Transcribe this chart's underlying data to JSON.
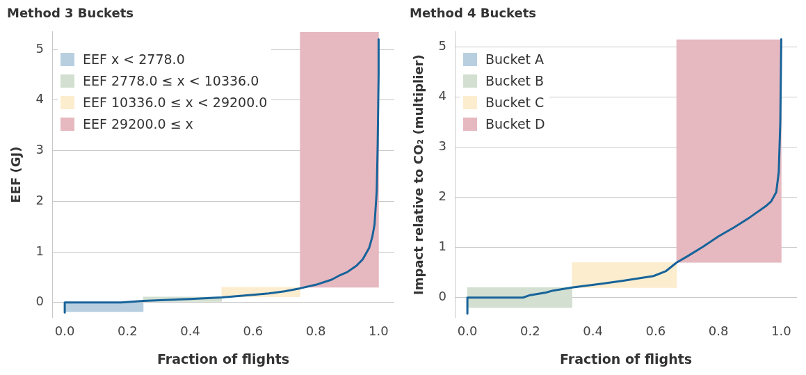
{
  "chart_data": [
    {
      "type": "line",
      "title": "Method 3 Buckets",
      "xlabel": "Fraction of flights",
      "ylabel": "EEF (GJ)",
      "legend": "top left",
      "grid": "y",
      "marker": "none",
      "line_style": "solid",
      "xlim": [
        -0.04,
        1.05
      ],
      "xticks": [
        {
          "value": 0,
          "label": "0.0"
        },
        {
          "value": 0.2,
          "label": "0.2"
        },
        {
          "value": 0.4,
          "label": "0.4"
        },
        {
          "value": 0.6,
          "label": "0.6"
        },
        {
          "value": 0.8,
          "label": "0.8"
        },
        {
          "value": 1,
          "label": "1.0"
        }
      ],
      "ylim": [
        -0.3,
        5.35
      ],
      "yticks": [
        0,
        1,
        2,
        3,
        4,
        5
      ],
      "series": [
        {
          "name": "EEF x < 2778.0",
          "type": "bar",
          "color": "#b8cfe0",
          "x": [
            0.125
          ],
          "base": [
            -0.18
          ],
          "values": [
            0.18
          ]
        },
        {
          "name": "EEF 2778.0 ≤ x < 10336.0",
          "type": "bar",
          "color": "#d3e0d1",
          "x": [
            0.375
          ],
          "base": [
            0.02
          ],
          "values": [
            0.09
          ]
        },
        {
          "name": "EEF 10336.0 ≤ x < 29200.0",
          "type": "bar",
          "color": "#fcedcf",
          "x": [
            0.625
          ],
          "base": [
            0.11
          ],
          "values": [
            0.19
          ]
        },
        {
          "name": "EEF 29200.0 ≤ x",
          "type": "bar",
          "color": "#e6b8c0",
          "x": [
            0.875
          ],
          "base": [
            0.3
          ],
          "values": [
            5.04
          ]
        },
        {
          "color": "#17639a",
          "x": [
            0,
            0,
            0.05,
            0.18,
            0.25,
            0.4,
            0.5,
            0.6,
            0.65,
            0.7,
            0.75,
            0.8,
            0.85,
            0.874,
            0.9,
            0.93,
            0.949,
            0.97,
            0.98,
            0.987,
            0.994,
            0.997,
            1,
            1
          ],
          "values": [
            -0.2,
            0,
            0,
            0,
            0.03,
            0.07,
            0.1,
            0.15,
            0.18,
            0.22,
            0.28,
            0.35,
            0.45,
            0.53,
            0.6,
            0.73,
            0.85,
            1.08,
            1.3,
            1.54,
            2.2,
            3.1,
            4.5,
            5.2
          ]
        }
      ]
    },
    {
      "type": "line",
      "title": "Method 4 Buckets",
      "xlabel": "Fraction of flights",
      "ylabel": "Impact relative to CO₂ (multiplier)",
      "legend": "top left",
      "grid": "y",
      "marker": "none",
      "line_style": "solid",
      "xlim": [
        -0.04,
        1.05
      ],
      "xticks": [
        {
          "value": 0,
          "label": "0.0"
        },
        {
          "value": 0.2,
          "label": "0.2"
        },
        {
          "value": 0.4,
          "label": "0.4"
        },
        {
          "value": 0.6,
          "label": "0.6"
        },
        {
          "value": 0.8,
          "label": "0.8"
        },
        {
          "value": 1,
          "label": "1.0"
        }
      ],
      "ylim": [
        -0.4,
        5.3
      ],
      "yticks": [
        0,
        1,
        2,
        3,
        4,
        5
      ],
      "series": [
        {
          "name": "Bucket A",
          "type": "bar",
          "color": "#b8cfe0"
        },
        {
          "name": "Bucket B",
          "type": "bar",
          "color": "#d3e0d1",
          "x": [
            0.1667
          ],
          "base": [
            -0.2
          ],
          "values": [
            0.4
          ]
        },
        {
          "name": "Bucket C",
          "type": "bar",
          "color": "#fcedcf",
          "x": [
            0.5
          ],
          "base": [
            0.2
          ],
          "values": [
            0.5
          ]
        },
        {
          "name": "Bucket D",
          "type": "bar",
          "color": "#e6b8c0",
          "x": [
            0.8333
          ],
          "base": [
            0.7
          ],
          "values": [
            4.44
          ]
        },
        {
          "color": "#17639a",
          "x": [
            0,
            0,
            0.1,
            0.177,
            0.2,
            0.25,
            0.273,
            0.333,
            0.433,
            0.5,
            0.593,
            0.633,
            0.667,
            0.7,
            0.752,
            0.8,
            0.85,
            0.9,
            0.95,
            0.968,
            0.984,
            0.992,
            0.997,
            1
          ],
          "values": [
            -0.32,
            0,
            0,
            0,
            0.05,
            0.1,
            0.14,
            0.2,
            0.28,
            0.34,
            0.43,
            0.53,
            0.7,
            0.82,
            1.02,
            1.22,
            1.4,
            1.6,
            1.82,
            1.92,
            2.1,
            2.5,
            3.5,
            5.15
          ]
        }
      ]
    }
  ]
}
